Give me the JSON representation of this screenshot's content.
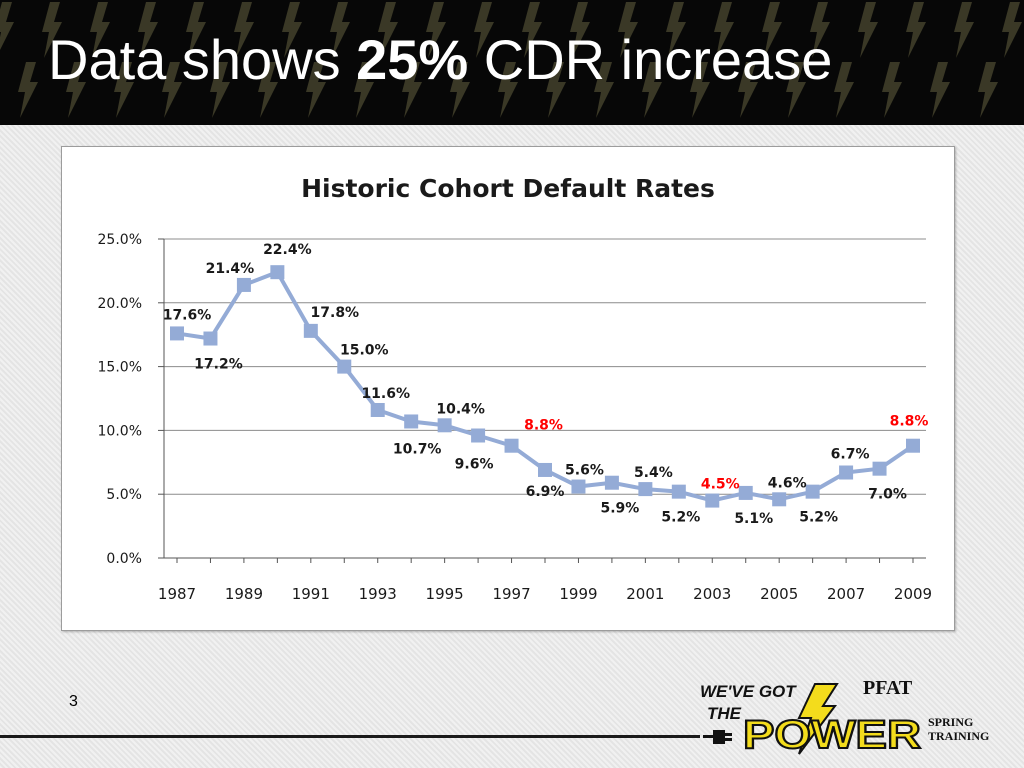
{
  "slide": {
    "title_pre": "Data shows ",
    "title_bold": "25%",
    "title_post": " CDR increase",
    "page_number": "3"
  },
  "logo": {
    "line1": "WE'VE GOT",
    "line2": "THE",
    "power": "POWER",
    "pfat": "PFAT",
    "spring": "SPRING",
    "training": "TRAINING"
  },
  "colors": {
    "series": "#94abd6",
    "highlight_label": "#ff0000",
    "label": "#1a1a1a",
    "grid": "#8c8c8c"
  },
  "chart_data": {
    "type": "line",
    "title": "Historic Cohort Default Rates",
    "xlabel": "",
    "ylabel": "",
    "ylim": [
      0,
      25
    ],
    "yticks": [
      "0.0%",
      "5.0%",
      "10.0%",
      "15.0%",
      "20.0%",
      "25.0%"
    ],
    "xtick_labels": [
      "1987",
      "1989",
      "1991",
      "1993",
      "1995",
      "1997",
      "1999",
      "2001",
      "2003",
      "2005",
      "2007",
      "2009"
    ],
    "grid": true,
    "legend": "none",
    "series": [
      {
        "x": [
          1987,
          1988,
          1989,
          1990,
          1991,
          1992,
          1993,
          1994,
          1995,
          1996,
          1997,
          1998,
          1999,
          2000,
          2001,
          2002,
          2003,
          2004,
          2005,
          2006,
          2007,
          2008,
          2009
        ],
        "values": [
          17.6,
          17.2,
          21.4,
          22.4,
          17.8,
          15.0,
          11.6,
          10.7,
          10.4,
          9.6,
          8.8,
          6.9,
          5.6,
          5.9,
          5.4,
          5.2,
          4.5,
          5.1,
          4.6,
          5.2,
          6.7,
          7.0,
          8.8
        ],
        "labels": [
          "17.6%",
          "17.2%",
          "21.4%",
          "22.4%",
          "17.8%",
          "15.0%",
          "11.6%",
          "10.7%",
          "10.4%",
          "9.6%",
          "8.8%",
          "6.9%",
          "5.6%",
          "5.9%",
          "5.4%",
          "5.2%",
          "4.5%",
          "5.1%",
          "4.6%",
          "5.2%",
          "6.7%",
          "7.0%",
          "8.8%"
        ],
        "highlighted_labels": [
          1997,
          2003,
          2009
        ]
      }
    ]
  }
}
